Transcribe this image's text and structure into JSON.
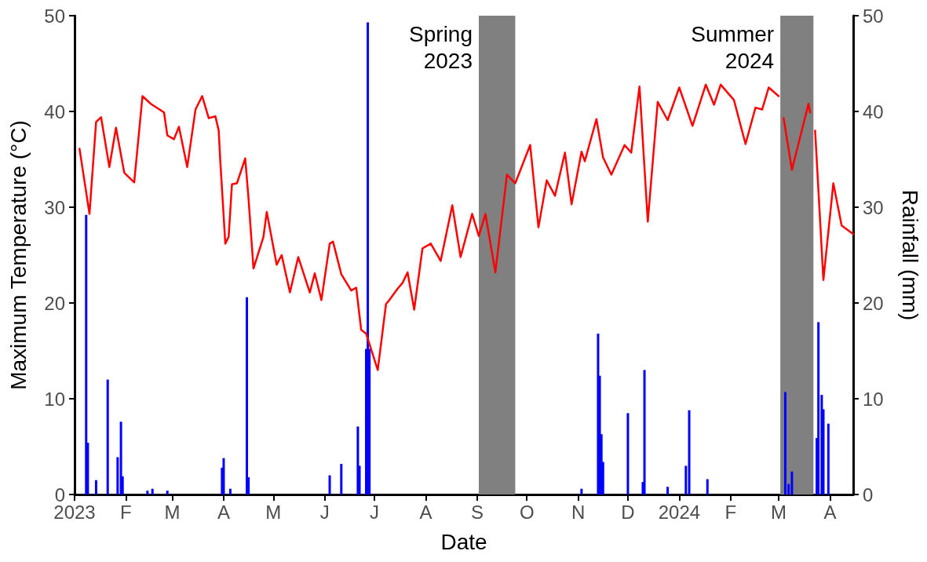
{
  "chart_data": {
    "type": "line",
    "xlabel": "Date",
    "ylabel": "Maximum Temperature (°C)",
    "y2label": "Rainfall (mm)",
    "xlim": [
      "2023-01-01",
      "2024-04-15"
    ],
    "xticks": [
      {
        "value": "2023-01-01",
        "label": "2023"
      },
      {
        "value": "2023-02-01",
        "label": "F"
      },
      {
        "value": "2023-03-01",
        "label": "M"
      },
      {
        "value": "2023-04-01",
        "label": "A"
      },
      {
        "value": "2023-05-01",
        "label": "M"
      },
      {
        "value": "2023-06-01",
        "label": "J"
      },
      {
        "value": "2023-07-01",
        "label": "J"
      },
      {
        "value": "2023-08-01",
        "label": "A"
      },
      {
        "value": "2023-09-01",
        "label": "S"
      },
      {
        "value": "2023-10-01",
        "label": "O"
      },
      {
        "value": "2023-11-01",
        "label": "N"
      },
      {
        "value": "2023-12-01",
        "label": "D"
      },
      {
        "value": "2024-01-01",
        "label": "2024"
      },
      {
        "value": "2024-02-01",
        "label": "F"
      },
      {
        "value": "2024-03-01",
        "label": "M"
      },
      {
        "value": "2024-04-01",
        "label": "A"
      }
    ],
    "ylim": [
      0,
      50
    ],
    "yticks": [
      0,
      10,
      20,
      30,
      40,
      50
    ],
    "y2lim": [
      0,
      50
    ],
    "y2ticks": [
      0,
      10,
      20,
      30,
      40,
      50
    ],
    "marker": "none",
    "line_style": "solid",
    "bands": [
      {
        "axis": "x",
        "from": "2023-09-02",
        "to": "2023-09-24",
        "label": "Spring 2023",
        "color": "#808080"
      },
      {
        "axis": "x",
        "from": "2024-03-02",
        "to": "2024-03-22",
        "label": "Summer 2024",
        "color": "#808080"
      }
    ],
    "series": [
      {
        "color": "#ff0000",
        "x": [
          "2023-01-04",
          "2023-01-10",
          "2023-01-14",
          "2023-01-17",
          "2023-01-22",
          "2023-01-26",
          "2023-01-31",
          "2023-02-06",
          "2023-02-11",
          "2023-02-16",
          "2023-02-24",
          "2023-02-26",
          "2023-03-02",
          "2023-03-05",
          "2023-03-10",
          "2023-03-15",
          "2023-03-19",
          "2023-03-23",
          "2023-03-27",
          "2023-03-29",
          "2023-03-30",
          "2023-04-02",
          "2023-04-04",
          "2023-04-06",
          "2023-04-09",
          "2023-04-14",
          "2023-04-16",
          "2023-04-19",
          "2023-04-25",
          "2023-04-27",
          "2023-05-03",
          "2023-05-06",
          "2023-05-11",
          "2023-05-16",
          "2023-05-23",
          "2023-05-26",
          "2023-05-30",
          "2023-06-04",
          "2023-06-06",
          "2023-06-11",
          "2023-06-17",
          "2023-06-20",
          "2023-06-23",
          "2023-06-26",
          "2023-07-03",
          "2023-07-08",
          "2023-07-10",
          "2023-07-15",
          "2023-07-18",
          "2023-07-21",
          "2023-07-25",
          "2023-07-30",
          "2023-08-04",
          "2023-08-10",
          "2023-08-17",
          "2023-08-22",
          "2023-08-29",
          "2023-09-02",
          "2023-09-06",
          "2023-09-12",
          "2023-09-19",
          "2023-09-24",
          "2023-10-03",
          "2023-10-08",
          "2023-10-13",
          "2023-10-18",
          "2023-10-24",
          "2023-10-28",
          "2023-11-03",
          "2023-11-05",
          "2023-11-12",
          "2023-11-16",
          "2023-11-21",
          "2023-11-29",
          "2023-12-03",
          "2023-12-08",
          "2023-12-13",
          "2023-12-19",
          "2023-12-25",
          "2024-01-01",
          "2024-01-09",
          "2024-01-17",
          "2024-01-22",
          "2024-01-26",
          "2024-02-03",
          "2024-02-10",
          "2024-02-16",
          "2024-02-20",
          "2024-02-24",
          "2024-03-01",
          "2024-03-02",
          "2024-03-04",
          "2024-03-09",
          "2024-03-19",
          "2024-03-20",
          "2024-03-21",
          "2024-03-23",
          "2024-03-28",
          "2024-04-03",
          "2024-04-08",
          "2024-04-15"
        ],
        "values": [
          36.1,
          29.3,
          38.9,
          39.4,
          34.2,
          38.3,
          33.6,
          32.6,
          41.6,
          40.8,
          39.9,
          37.5,
          37.1,
          38.4,
          34.2,
          40.2,
          41.6,
          39.3,
          39.5,
          38.0,
          34.7,
          26.2,
          26.9,
          32.4,
          32.5,
          35.1,
          30.9,
          23.6,
          26.9,
          29.5,
          24.0,
          25.0,
          21.1,
          24.8,
          21.1,
          23.1,
          20.3,
          26.2,
          26.4,
          23.0,
          21.3,
          21.6,
          17.2,
          16.8,
          13.0,
          19.9,
          20.3,
          21.5,
          22.1,
          23.2,
          19.3,
          25.7,
          26.2,
          24.4,
          30.2,
          24.8,
          29.3,
          27.0,
          29.3,
          23.2,
          33.4,
          32.5,
          36.5,
          27.9,
          32.8,
          31.2,
          35.7,
          30.3,
          35.8,
          34.8,
          39.2,
          35.2,
          33.4,
          36.5,
          35.7,
          42.6,
          28.5,
          41.0,
          39.1,
          42.5,
          38.5,
          42.8,
          40.7,
          42.8,
          41.2,
          36.6,
          40.4,
          40.2,
          42.5,
          41.6,
          null,
          39.3,
          33.9,
          40.8,
          39.9,
          null,
          38.0,
          22.4,
          32.5,
          28.1,
          27.2
        ]
      },
      {
        "type": "bar",
        "axis": "y2",
        "color": "#0000ff",
        "x": [
          "2023-01-08",
          "2023-01-09",
          "2023-01-14",
          "2023-01-21",
          "2023-01-27",
          "2023-01-29",
          "2023-01-30",
          "2023-02-14",
          "2023-02-17",
          "2023-02-26",
          "2023-03-31",
          "2023-04-01",
          "2023-04-05",
          "2023-04-15",
          "2023-04-16",
          "2023-06-04",
          "2023-06-11",
          "2023-06-21",
          "2023-06-22",
          "2023-06-26",
          "2023-06-27",
          "2023-06-28",
          "2023-11-03",
          "2023-11-13",
          "2023-11-14",
          "2023-11-15",
          "2023-11-16",
          "2023-12-01",
          "2023-12-10",
          "2023-12-11",
          "2023-12-25",
          "2024-01-05",
          "2024-01-07",
          "2024-01-18",
          "2024-03-05",
          "2024-03-07",
          "2024-03-09",
          "2024-03-24",
          "2024-03-25",
          "2024-03-27",
          "2024-03-28",
          "2024-03-31"
        ],
        "values": [
          29.2,
          5.4,
          1.5,
          12.0,
          3.9,
          7.6,
          1.9,
          0.4,
          0.6,
          0.4,
          2.8,
          3.8,
          0.6,
          20.6,
          1.8,
          2.0,
          3.2,
          7.1,
          3.0,
          15.2,
          49.3,
          15.2,
          0.6,
          16.8,
          12.4,
          6.3,
          3.4,
          8.5,
          1.3,
          13.0,
          0.8,
          3.0,
          8.8,
          1.6,
          10.7,
          1.1,
          2.4,
          5.9,
          18.0,
          10.4,
          8.9,
          7.4
        ]
      }
    ]
  }
}
